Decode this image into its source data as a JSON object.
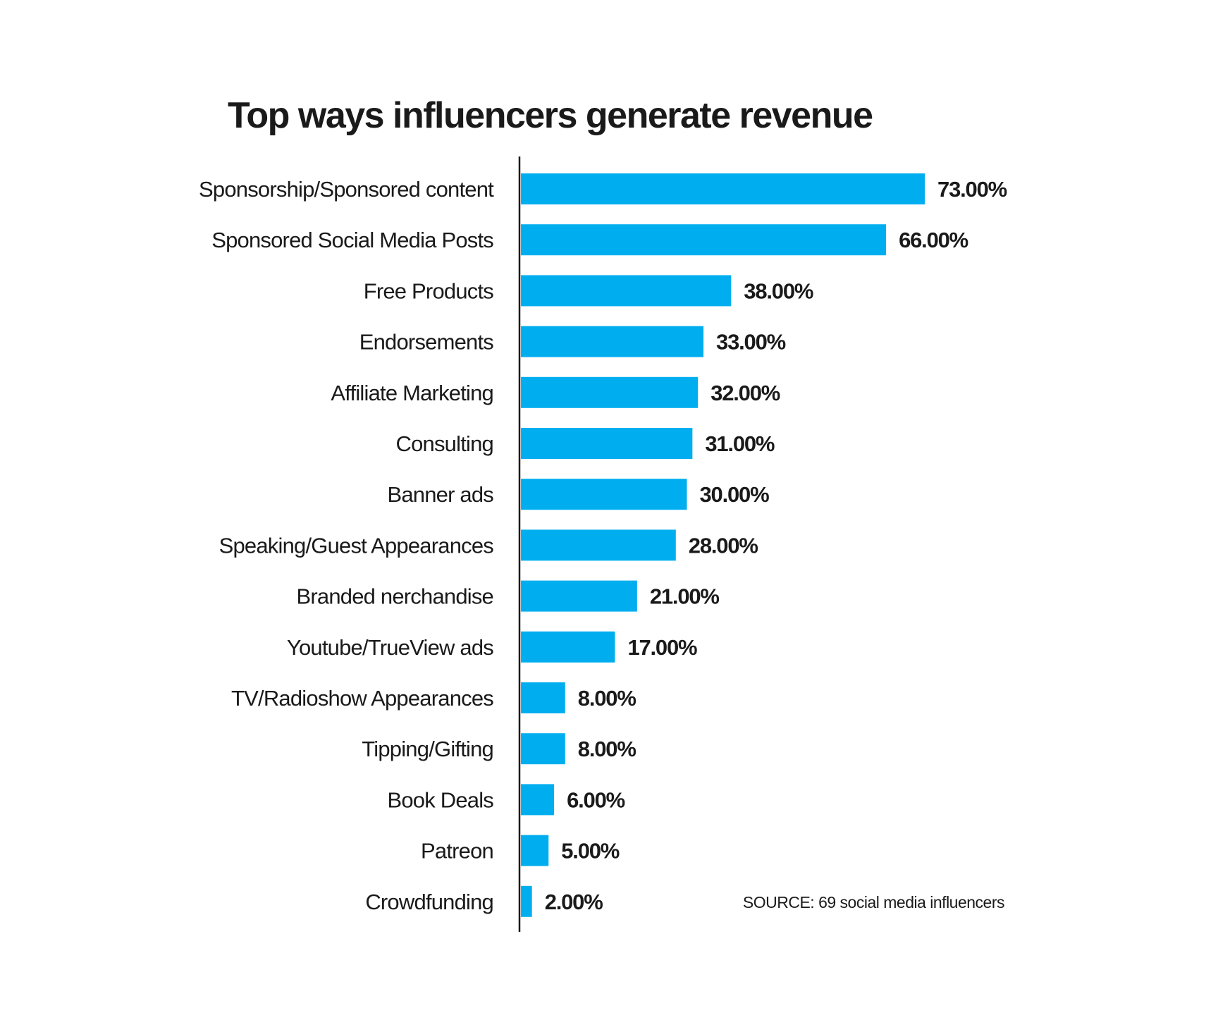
{
  "chart_data": {
    "type": "bar",
    "orientation": "horizontal",
    "title": "Top ways influencers generate revenue",
    "categories": [
      "Sponsorship/Sponsored content",
      "Sponsored Social Media Posts",
      "Free Products",
      "Endorsements",
      "Affiliate Marketing",
      "Consulting",
      "Banner ads",
      "Speaking/Guest Appearances",
      "Branded nerchandise",
      "Youtube/TrueView ads",
      "TV/Radioshow Appearances",
      "Tipping/Gifting",
      "Book Deals",
      "Patreon",
      "Crowdfunding"
    ],
    "values": [
      73,
      66,
      38,
      33,
      32,
      31,
      30,
      28,
      21,
      17,
      8,
      8,
      6,
      5,
      2
    ],
    "value_labels": [
      "73.00%",
      "66.00%",
      "38.00%",
      "33.00%",
      "32.00%",
      "31.00%",
      "30.00%",
      "28.00%",
      "21.00%",
      "17.00%",
      "8.00%",
      "8.00%",
      "6.00%",
      "5.00%",
      "2.00%"
    ],
    "xlim": [
      0,
      100
    ],
    "grid": false,
    "bar_color": "#00aeef",
    "text_color": "#1a1a1a",
    "source": "SOURCE: 69 social media influencers"
  }
}
